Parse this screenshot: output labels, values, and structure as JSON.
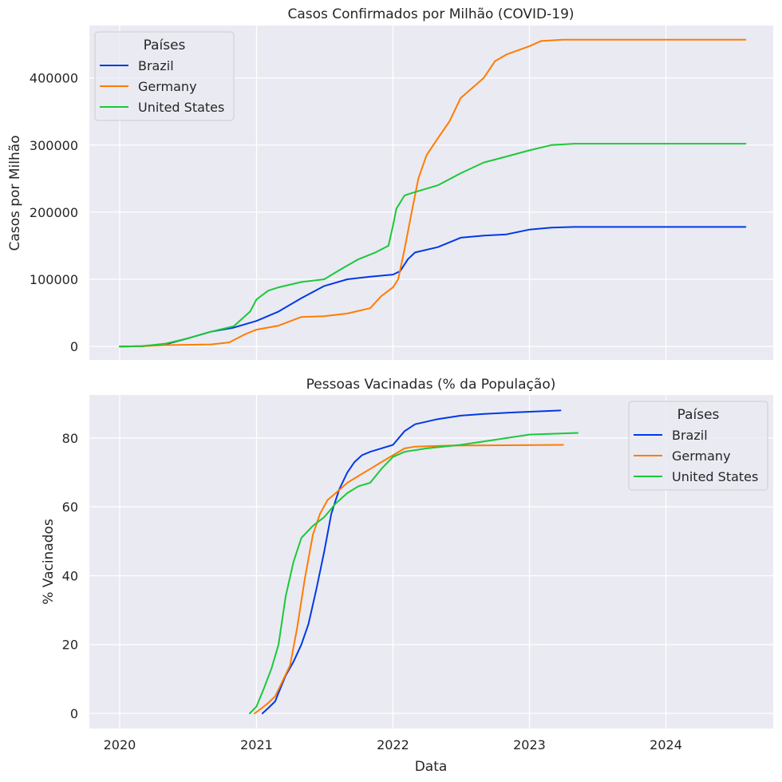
{
  "colors": {
    "background": "#ffffff",
    "plot_bg": "#eaeaf2",
    "grid": "#ffffff",
    "text": "#262626",
    "Brazil": "#0039e6",
    "Germany": "#ff7c00",
    "United States": "#1ac938"
  },
  "chart_data": [
    {
      "type": "line",
      "title": "Casos Confirmados por Milhão (COVID-19)",
      "xlabel": "",
      "ylabel": "Casos por Milhão",
      "x_type": "date",
      "xlim": [
        "2019-10-12",
        "2024-10-14"
      ],
      "ylim": [
        -20000,
        478000
      ],
      "x_ticks": [
        "2020-01-01",
        "2021-01-01",
        "2022-01-01",
        "2023-01-01",
        "2024-01-01"
      ],
      "x_tick_labels": [
        "",
        "",
        "",
        "",
        ""
      ],
      "y_ticks": [
        0,
        100000,
        200000,
        300000,
        400000
      ],
      "y_tick_labels": [
        "0",
        "100000",
        "200000",
        "300000",
        "400000"
      ],
      "grid": true,
      "legend": {
        "title": "Países",
        "placement": "top-left",
        "entries": [
          "Brazil",
          "Germany",
          "United States"
        ]
      },
      "series": [
        {
          "name": "Brazil",
          "x": [
            "2020-01-01",
            "2020-03-01",
            "2020-05-01",
            "2020-07-01",
            "2020-09-01",
            "2020-11-01",
            "2021-01-01",
            "2021-03-01",
            "2021-05-01",
            "2021-07-01",
            "2021-09-01",
            "2021-11-01",
            "2022-01-01",
            "2022-01-20",
            "2022-02-10",
            "2022-03-01",
            "2022-05-01",
            "2022-07-01",
            "2022-09-01",
            "2022-11-01",
            "2022-12-31",
            "2023-03-01",
            "2023-05-01",
            "2024-08-01"
          ],
          "y": [
            0,
            500,
            3000,
            12000,
            22000,
            28000,
            38000,
            52000,
            72000,
            90000,
            100000,
            104000,
            107000,
            112000,
            130000,
            140000,
            148000,
            162000,
            165000,
            167000,
            174000,
            177000,
            178000,
            178000
          ]
        },
        {
          "name": "Germany",
          "x": [
            "2020-01-01",
            "2020-03-01",
            "2020-05-01",
            "2020-07-01",
            "2020-09-01",
            "2020-10-20",
            "2020-12-01",
            "2021-01-01",
            "2021-03-01",
            "2021-05-01",
            "2021-07-01",
            "2021-09-01",
            "2021-11-01",
            "2021-12-01",
            "2022-01-01",
            "2022-01-15",
            "2022-02-01",
            "2022-02-20",
            "2022-03-10",
            "2022-04-01",
            "2022-05-01",
            "2022-06-01",
            "2022-07-01",
            "2022-08-01",
            "2022-09-01",
            "2022-10-01",
            "2022-11-01",
            "2022-12-31",
            "2023-02-01",
            "2023-04-01",
            "2024-08-01"
          ],
          "y": [
            0,
            300,
            2000,
            2500,
            3000,
            6000,
            18000,
            25000,
            31000,
            44000,
            45000,
            49000,
            57000,
            75000,
            88000,
            100000,
            145000,
            200000,
            250000,
            285000,
            310000,
            335000,
            370000,
            385000,
            400000,
            425000,
            435000,
            447000,
            455000,
            457000,
            457000
          ]
        },
        {
          "name": "United States",
          "x": [
            "2020-01-01",
            "2020-03-01",
            "2020-05-01",
            "2020-07-01",
            "2020-09-01",
            "2020-11-01",
            "2020-12-15",
            "2021-01-01",
            "2021-02-01",
            "2021-03-01",
            "2021-05-01",
            "2021-07-01",
            "2021-08-15",
            "2021-10-01",
            "2021-11-15",
            "2021-12-20",
            "2022-01-01",
            "2022-01-10",
            "2022-02-01",
            "2022-03-01",
            "2022-05-01",
            "2022-07-01",
            "2022-09-01",
            "2022-11-01",
            "2022-12-31",
            "2023-03-01",
            "2023-05-01",
            "2024-08-01"
          ],
          "y": [
            0,
            500,
            4000,
            12000,
            22000,
            30000,
            52000,
            70000,
            83000,
            88000,
            96000,
            100000,
            115000,
            130000,
            140000,
            150000,
            180000,
            205000,
            225000,
            230000,
            240000,
            258000,
            274000,
            283000,
            292000,
            300000,
            302000,
            302000
          ]
        }
      ]
    },
    {
      "type": "line",
      "title": "Pessoas Vacinadas (% da População)",
      "xlabel": "Data",
      "ylabel": "% Vacinados",
      "x_type": "date",
      "xlim": [
        "2019-10-12",
        "2024-10-14"
      ],
      "ylim": [
        -4.4,
        92.5
      ],
      "x_ticks": [
        "2020-01-01",
        "2021-01-01",
        "2022-01-01",
        "2023-01-01",
        "2024-01-01"
      ],
      "x_tick_labels": [
        "2020",
        "2021",
        "2022",
        "2023",
        "2024"
      ],
      "y_ticks": [
        0,
        20,
        40,
        60,
        80
      ],
      "y_tick_labels": [
        "0",
        "20",
        "40",
        "60",
        "80"
      ],
      "grid": true,
      "legend": {
        "title": "Países",
        "placement": "top-right",
        "entries": [
          "Brazil",
          "Germany",
          "United States"
        ]
      },
      "series": [
        {
          "name": "Brazil",
          "x": [
            "2021-01-17",
            "2021-02-01",
            "2021-02-20",
            "2021-03-01",
            "2021-03-20",
            "2021-04-10",
            "2021-05-01",
            "2021-05-20",
            "2021-06-10",
            "2021-07-01",
            "2021-07-20",
            "2021-08-10",
            "2021-09-01",
            "2021-09-20",
            "2021-10-10",
            "2021-11-01",
            "2021-12-01",
            "2022-01-01",
            "2022-02-01",
            "2022-03-01",
            "2022-05-01",
            "2022-07-01",
            "2022-09-01",
            "2022-12-01",
            "2023-03-25"
          ],
          "y": [
            0,
            1.5,
            3.5,
            6,
            11,
            15,
            20,
            26,
            36,
            47,
            58,
            65,
            70,
            73,
            75,
            76,
            77,
            78,
            82,
            84,
            85.5,
            86.5,
            87,
            87.5,
            88
          ]
        },
        {
          "name": "Germany",
          "x": [
            "2020-12-27",
            "2021-01-15",
            "2021-02-01",
            "2021-02-20",
            "2021-03-10",
            "2021-04-01",
            "2021-04-20",
            "2021-05-10",
            "2021-06-01",
            "2021-06-20",
            "2021-07-10",
            "2021-08-01",
            "2021-09-01",
            "2021-10-01",
            "2021-11-01",
            "2021-12-01",
            "2022-01-01",
            "2022-02-01",
            "2022-03-01",
            "2022-06-01",
            "2023-04-01"
          ],
          "y": [
            0,
            1.5,
            3,
            5,
            9,
            14,
            25,
            39,
            52,
            58,
            62,
            64,
            67,
            69,
            71,
            73,
            75,
            77,
            77.5,
            77.8,
            78
          ]
        },
        {
          "name": "United States",
          "x": [
            "2020-12-14",
            "2021-01-01",
            "2021-01-20",
            "2021-02-10",
            "2021-03-01",
            "2021-03-20",
            "2021-04-10",
            "2021-05-01",
            "2021-06-01",
            "2021-07-01",
            "2021-08-01",
            "2021-09-01",
            "2021-10-01",
            "2021-11-01",
            "2021-12-01",
            "2022-01-01",
            "2022-02-01",
            "2022-04-01",
            "2022-07-01",
            "2022-10-01",
            "2023-01-01",
            "2023-05-10"
          ],
          "y": [
            0,
            2,
            7,
            13,
            20,
            34,
            44,
            51,
            54.5,
            57,
            61,
            64,
            66,
            67,
            71,
            74.5,
            76,
            77,
            78,
            79.5,
            81,
            81.5
          ]
        }
      ]
    }
  ]
}
